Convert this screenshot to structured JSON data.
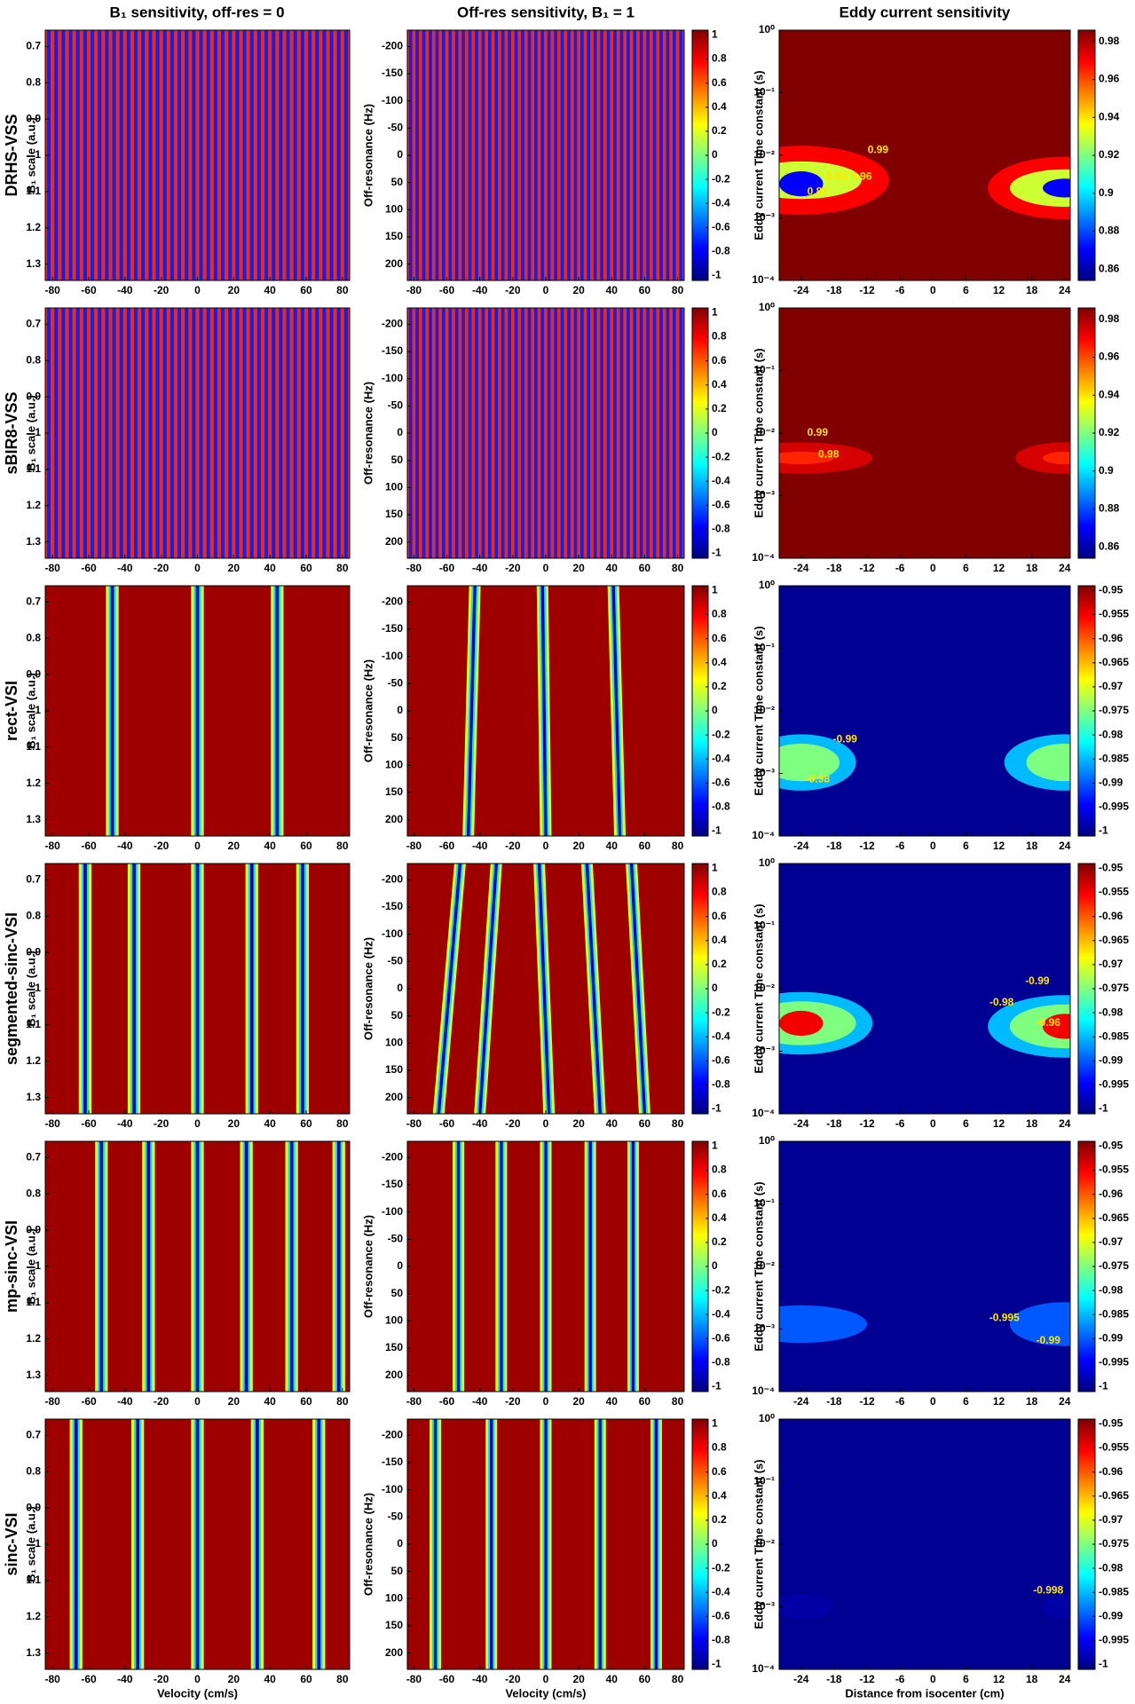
{
  "columns": [
    {
      "title": "B₁ sensitivity, off-res = 0",
      "ylabel": "B₁ scale (a.u.)",
      "xlabel": "Velocity (cm/s)",
      "xlim": [
        -84,
        84
      ],
      "xticks": [
        -80,
        -60,
        -40,
        -20,
        0,
        20,
        40,
        60,
        80
      ],
      "ylim": [
        0.655,
        1.345
      ],
      "yticks": [
        0.7,
        0.8,
        0.9,
        1,
        1.1,
        1.2,
        1.3
      ]
    },
    {
      "title": "Off-res sensitivity, B₁ = 1",
      "ylabel": "Off-resonance (Hz)",
      "xlabel": "Velocity (cm/s)",
      "xlim": [
        -84,
        84
      ],
      "xticks": [
        -80,
        -60,
        -40,
        -20,
        0,
        20,
        40,
        60,
        80
      ],
      "ylim": [
        -230,
        230
      ],
      "yticks": [
        -200,
        -150,
        -100,
        -50,
        0,
        50,
        100,
        150,
        200
      ]
    },
    {
      "title": "Eddy current sensitivity",
      "ylabel": "Eddy current Time constant (s)",
      "xlabel": "Distance from isocenter (cm)",
      "xlim": [
        -28,
        25
      ],
      "xticks": [
        -24,
        -18,
        -12,
        -6,
        0,
        6,
        12,
        18,
        24
      ],
      "log": true,
      "ylim": [
        0.0001,
        1
      ],
      "yticks": [
        {
          "value": 0.0001,
          "label": "10⁻⁴"
        },
        {
          "value": 0.001,
          "label": "10⁻³"
        },
        {
          "value": 0.01,
          "label": "10⁻²"
        },
        {
          "value": 0.1,
          "label": "10⁻¹"
        },
        {
          "value": 1,
          "label": "10⁰"
        }
      ]
    }
  ],
  "colorbar": {
    "clim": [
      -1.04,
      1.04
    ],
    "ticks": [
      1,
      0.8,
      0.6,
      0.4,
      0.2,
      0,
      -0.2,
      -0.4,
      -0.6,
      -0.8,
      -1
    ]
  },
  "rows": [
    {
      "label": "DRHS-VSS",
      "stripe_period": 4,
      "eddy": {
        "clim": [
          0.854,
          0.986
        ],
        "ticks": [
          0.98,
          0.96,
          0.94,
          0.92,
          0.9,
          0.88,
          0.86
        ],
        "background": 0.99,
        "regions": [
          {
            "value": 0.97,
            "cx": -24,
            "rx": 16,
            "cy": 0.004,
            "ry": 0.55
          },
          {
            "value": 0.93,
            "cx": -24,
            "rx": 11,
            "cy": 0.004,
            "ry": 0.3
          },
          {
            "value": 0.87,
            "cx": -24,
            "rx": 4,
            "cy": 0.0035,
            "ry": 0.2
          },
          {
            "value": 0.97,
            "cx": 24,
            "rx": 14,
            "cy": 0.003,
            "ry": 0.5
          },
          {
            "value": 0.93,
            "cx": 24,
            "rx": 10,
            "cy": 0.003,
            "ry": 0.3
          },
          {
            "value": 0.87,
            "cx": 24,
            "rx": 4,
            "cy": 0.003,
            "ry": 0.15
          }
        ],
        "contour_labels": [
          {
            "value": 0.99,
            "x": -10,
            "y": 0.012
          },
          {
            "value": 0.92,
            "x": -17.5,
            "y": 0.0045
          },
          {
            "value": 0.96,
            "x": -13,
            "y": 0.0045
          },
          {
            "value": 0.88,
            "x": -21,
            "y": 0.0026
          }
        ]
      }
    },
    {
      "label": "sBIR8-VSS",
      "stripe_period": 4,
      "eddy": {
        "clim": [
          0.854,
          0.986
        ],
        "ticks": [
          0.98,
          0.96,
          0.94,
          0.92,
          0.9,
          0.88,
          0.86
        ],
        "background": 0.99,
        "regions": [
          {
            "value": 0.975,
            "cx": -24,
            "rx": 13,
            "cy": 0.004,
            "ry": 0.25
          },
          {
            "value": 0.965,
            "cx": -24,
            "rx": 6,
            "cy": 0.004,
            "ry": 0.1
          },
          {
            "value": 0.975,
            "cx": 24,
            "rx": 9,
            "cy": 0.004,
            "ry": 0.25
          },
          {
            "value": 0.965,
            "cx": 24,
            "rx": 4,
            "cy": 0.004,
            "ry": 0.1
          }
        ],
        "contour_labels": [
          {
            "value": 0.99,
            "x": -21,
            "y": 0.01
          },
          {
            "value": 0.98,
            "x": -19,
            "y": 0.0045
          }
        ]
      }
    },
    {
      "label": "rect-VSI",
      "stripes": [
        -47,
        0,
        44
      ],
      "offres_stripes": [
        [
          -43,
          -47
        ],
        [
          -2,
          0
        ],
        [
          41,
          45
        ]
      ],
      "eddy": {
        "clim": [
          -1.001,
          -0.949
        ],
        "ticks": [
          -1,
          -0.995,
          -0.99,
          -0.985,
          -0.98,
          -0.975,
          -0.97,
          -0.965,
          -0.96,
          -0.955,
          -0.95
        ],
        "background": -1,
        "regions": [
          {
            "value": -0.985,
            "cx": -24,
            "rx": 10,
            "cy": 0.0015,
            "ry": 0.45
          },
          {
            "value": -0.975,
            "cx": -24,
            "rx": 7,
            "cy": 0.0015,
            "ry": 0.3
          },
          {
            "value": -0.985,
            "cx": 24,
            "rx": 11,
            "cy": 0.0015,
            "ry": 0.45
          },
          {
            "value": -0.975,
            "cx": 24,
            "rx": 7,
            "cy": 0.0015,
            "ry": 0.3
          }
        ],
        "contour_labels": [
          {
            "value": -0.99,
            "x": -16,
            "y": 0.0035
          },
          {
            "value": -0.98,
            "x": -21,
            "y": 0.0008
          }
        ]
      }
    },
    {
      "label": "segmented-sinc-VSI",
      "stripes": [
        -62,
        -35,
        0,
        30,
        58
      ],
      "offres_stripes": [
        [
          -52,
          -65
        ],
        [
          -30,
          -40
        ],
        [
          -4,
          2
        ],
        [
          25,
          33
        ],
        [
          52,
          60
        ]
      ],
      "eddy": {
        "clim": [
          -1.001,
          -0.949
        ],
        "ticks": [
          -1,
          -0.995,
          -0.99,
          -0.985,
          -0.98,
          -0.975,
          -0.97,
          -0.965,
          -0.96,
          -0.955,
          -0.95
        ],
        "background": -1,
        "regions": [
          {
            "value": -0.985,
            "cx": -24,
            "rx": 13,
            "cy": 0.0028,
            "ry": 0.5
          },
          {
            "value": -0.975,
            "cx": -24,
            "rx": 10,
            "cy": 0.0028,
            "ry": 0.35
          },
          {
            "value": -0.955,
            "cx": -24,
            "rx": 4,
            "cy": 0.0028,
            "ry": 0.2
          },
          {
            "value": -0.985,
            "cx": 24,
            "rx": 14,
            "cy": 0.0025,
            "ry": 0.5
          },
          {
            "value": -0.975,
            "cx": 24,
            "rx": 10,
            "cy": 0.0025,
            "ry": 0.35
          },
          {
            "value": -0.955,
            "cx": 24,
            "rx": 4,
            "cy": 0.0025,
            "ry": 0.2
          }
        ],
        "contour_labels": [
          {
            "value": -0.99,
            "x": 19,
            "y": 0.013
          },
          {
            "value": -0.98,
            "x": 12.5,
            "y": 0.006
          },
          {
            "value": -0.96,
            "x": 21,
            "y": 0.0028
          }
        ]
      }
    },
    {
      "label": "mp-sinc-VSI",
      "stripes": [
        -53,
        -27,
        0,
        27,
        52,
        78
      ],
      "offres_stripes": [
        [
          -53,
          -53
        ],
        [
          -27,
          -27
        ],
        [
          0,
          0
        ],
        [
          27,
          27
        ],
        [
          53,
          53
        ]
      ],
      "eddy": {
        "clim": [
          -1.001,
          -0.949
        ],
        "ticks": [
          -1,
          -0.995,
          -0.99,
          -0.985,
          -0.98,
          -0.975,
          -0.97,
          -0.965,
          -0.96,
          -0.955,
          -0.95
        ],
        "background": -1,
        "regions": [
          {
            "value": -0.99,
            "cx": -24,
            "rx": 12,
            "cy": 0.0012,
            "ry": 0.3
          },
          {
            "value": -0.99,
            "cx": 24,
            "rx": 10,
            "cy": 0.0012,
            "ry": 0.35
          }
        ],
        "contour_labels": [
          {
            "value": -0.995,
            "x": 13,
            "y": 0.0015
          },
          {
            "value": -0.99,
            "x": 21,
            "y": 0.00065
          }
        ]
      }
    },
    {
      "label": "sinc-VSI",
      "stripes": [
        -67,
        -33,
        0,
        33,
        67
      ],
      "offres_stripes": [
        [
          -67,
          -67
        ],
        [
          -33,
          -33
        ],
        [
          0,
          0
        ],
        [
          33,
          33
        ],
        [
          67,
          67
        ]
      ],
      "eddy": {
        "clim": [
          -1.001,
          -0.949
        ],
        "ticks": [
          -1,
          -0.995,
          -0.99,
          -0.985,
          -0.98,
          -0.975,
          -0.97,
          -0.965,
          -0.96,
          -0.955,
          -0.95
        ],
        "background": -1,
        "regions": [
          {
            "value": -0.999,
            "cx": -24,
            "rx": 6,
            "cy": 0.001,
            "ry": 0.2
          },
          {
            "value": -0.999,
            "cx": 24,
            "rx": 4,
            "cy": 0.001,
            "ry": 0.2
          }
        ],
        "contour_labels": [
          {
            "value": -0.998,
            "x": 21,
            "y": 0.0018
          }
        ]
      }
    }
  ]
}
